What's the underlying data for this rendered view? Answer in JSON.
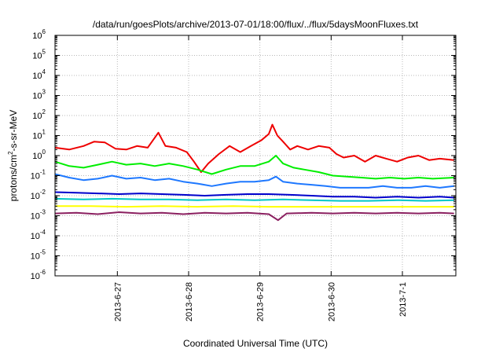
{
  "chart_data": {
    "type": "line",
    "title": "/data/run/goesPlots/archive/2013-07-01/18:00/flux/../flux/5daysMoonFluxes.txt",
    "xlabel": "Coordinated Universal Time (UTC)",
    "ylabel": {
      "prefix": "protons/cm",
      "superscript": "2",
      "suffix": "-s-sr-MeV"
    },
    "y_scale": "log",
    "ylim_exponents": [
      -6,
      6
    ],
    "y_ticks": [
      {
        "base": "10",
        "exp": "6"
      },
      {
        "base": "10",
        "exp": "5"
      },
      {
        "base": "10",
        "exp": "4"
      },
      {
        "base": "10",
        "exp": "3"
      },
      {
        "base": "10",
        "exp": "2"
      },
      {
        "base": "10",
        "exp": "1"
      },
      {
        "base": "10",
        "exp": "0"
      },
      {
        "base": "10",
        "exp": "-1"
      },
      {
        "base": "10",
        "exp": "-2"
      },
      {
        "base": "10",
        "exp": "-3"
      },
      {
        "base": "10",
        "exp": "-4"
      },
      {
        "base": "10",
        "exp": "-5"
      },
      {
        "base": "10",
        "exp": "-6"
      }
    ],
    "x_start": "2013-06-26 03:00",
    "x_end": "2013-07-01 18:00",
    "x_ticks": [
      "2013-6-27",
      "2013-6-28",
      "2013-6-29",
      "2013-6-30",
      "2013-7-1"
    ],
    "x_tick_dates": [
      "2013-06-27",
      "2013-06-28",
      "2013-06-29",
      "2013-06-30",
      "2013-07-01"
    ],
    "grid": true,
    "legend": "none",
    "series": [
      {
        "color": "#ee0000",
        "values": [
          [
            0.0,
            2.5
          ],
          [
            0.2,
            2.0
          ],
          [
            0.4,
            3.0
          ],
          [
            0.55,
            5.0
          ],
          [
            0.7,
            4.5
          ],
          [
            0.85,
            2.2
          ],
          [
            1.0,
            2.0
          ],
          [
            1.15,
            3.0
          ],
          [
            1.3,
            2.5
          ],
          [
            1.45,
            14.0
          ],
          [
            1.55,
            3.0
          ],
          [
            1.7,
            2.5
          ],
          [
            1.85,
            1.5
          ],
          [
            1.95,
            0.5
          ],
          [
            2.05,
            0.15
          ],
          [
            2.15,
            0.4
          ],
          [
            2.3,
            1.2
          ],
          [
            2.45,
            3.0
          ],
          [
            2.6,
            1.5
          ],
          [
            2.75,
            3.0
          ],
          [
            2.9,
            6.0
          ],
          [
            3.0,
            12.0
          ],
          [
            3.05,
            35.0
          ],
          [
            3.12,
            10.0
          ],
          [
            3.2,
            5.0
          ],
          [
            3.3,
            2.0
          ],
          [
            3.4,
            3.0
          ],
          [
            3.55,
            2.0
          ],
          [
            3.7,
            3.0
          ],
          [
            3.85,
            2.5
          ],
          [
            3.95,
            1.2
          ],
          [
            4.05,
            0.8
          ],
          [
            4.2,
            1.0
          ],
          [
            4.35,
            0.5
          ],
          [
            4.5,
            1.0
          ],
          [
            4.65,
            0.7
          ],
          [
            4.8,
            0.5
          ],
          [
            4.95,
            0.8
          ],
          [
            5.1,
            1.0
          ],
          [
            5.25,
            0.6
          ],
          [
            5.4,
            0.7
          ],
          [
            5.6,
            0.6
          ]
        ]
      },
      {
        "color": "#00ee00",
        "values": [
          [
            0.0,
            0.5
          ],
          [
            0.2,
            0.3
          ],
          [
            0.4,
            0.25
          ],
          [
            0.6,
            0.35
          ],
          [
            0.8,
            0.5
          ],
          [
            1.0,
            0.35
          ],
          [
            1.2,
            0.4
          ],
          [
            1.4,
            0.3
          ],
          [
            1.6,
            0.4
          ],
          [
            1.8,
            0.3
          ],
          [
            2.0,
            0.2
          ],
          [
            2.2,
            0.12
          ],
          [
            2.4,
            0.2
          ],
          [
            2.6,
            0.3
          ],
          [
            2.8,
            0.3
          ],
          [
            3.0,
            0.5
          ],
          [
            3.1,
            1.0
          ],
          [
            3.2,
            0.4
          ],
          [
            3.35,
            0.25
          ],
          [
            3.5,
            0.2
          ],
          [
            3.7,
            0.15
          ],
          [
            3.9,
            0.1
          ],
          [
            4.1,
            0.09
          ],
          [
            4.3,
            0.08
          ],
          [
            4.5,
            0.07
          ],
          [
            4.7,
            0.08
          ],
          [
            4.9,
            0.07
          ],
          [
            5.1,
            0.08
          ],
          [
            5.3,
            0.07
          ],
          [
            5.6,
            0.08
          ]
        ]
      },
      {
        "color": "#1e78ff",
        "values": [
          [
            0.0,
            0.12
          ],
          [
            0.2,
            0.08
          ],
          [
            0.4,
            0.06
          ],
          [
            0.6,
            0.07
          ],
          [
            0.8,
            0.1
          ],
          [
            1.0,
            0.07
          ],
          [
            1.2,
            0.08
          ],
          [
            1.4,
            0.06
          ],
          [
            1.6,
            0.07
          ],
          [
            1.8,
            0.05
          ],
          [
            2.0,
            0.04
          ],
          [
            2.2,
            0.03
          ],
          [
            2.4,
            0.04
          ],
          [
            2.6,
            0.05
          ],
          [
            2.8,
            0.05
          ],
          [
            3.0,
            0.06
          ],
          [
            3.1,
            0.09
          ],
          [
            3.2,
            0.05
          ],
          [
            3.4,
            0.04
          ],
          [
            3.6,
            0.035
          ],
          [
            3.8,
            0.03
          ],
          [
            4.0,
            0.025
          ],
          [
            4.2,
            0.025
          ],
          [
            4.4,
            0.025
          ],
          [
            4.6,
            0.03
          ],
          [
            4.8,
            0.025
          ],
          [
            5.0,
            0.025
          ],
          [
            5.2,
            0.03
          ],
          [
            5.4,
            0.025
          ],
          [
            5.6,
            0.03
          ]
        ]
      },
      {
        "color": "#0000cc",
        "values": [
          [
            0.0,
            0.015
          ],
          [
            0.3,
            0.014
          ],
          [
            0.6,
            0.013
          ],
          [
            0.9,
            0.012
          ],
          [
            1.2,
            0.013
          ],
          [
            1.5,
            0.012
          ],
          [
            1.8,
            0.011
          ],
          [
            2.1,
            0.01
          ],
          [
            2.4,
            0.011
          ],
          [
            2.7,
            0.012
          ],
          [
            3.0,
            0.012
          ],
          [
            3.3,
            0.011
          ],
          [
            3.6,
            0.01
          ],
          [
            3.9,
            0.009
          ],
          [
            4.2,
            0.009
          ],
          [
            4.5,
            0.008
          ],
          [
            4.8,
            0.009
          ],
          [
            5.1,
            0.008
          ],
          [
            5.4,
            0.009
          ],
          [
            5.6,
            0.008
          ]
        ]
      },
      {
        "color": "#00c8c8",
        "values": [
          [
            0.0,
            0.007
          ],
          [
            0.4,
            0.0065
          ],
          [
            0.8,
            0.007
          ],
          [
            1.2,
            0.0065
          ],
          [
            1.6,
            0.0065
          ],
          [
            2.0,
            0.006
          ],
          [
            2.4,
            0.0065
          ],
          [
            2.8,
            0.006
          ],
          [
            3.2,
            0.0065
          ],
          [
            3.6,
            0.006
          ],
          [
            4.0,
            0.0055
          ],
          [
            4.4,
            0.0055
          ],
          [
            4.8,
            0.006
          ],
          [
            5.2,
            0.0055
          ],
          [
            5.6,
            0.006
          ]
        ]
      },
      {
        "color": "#ffff00",
        "values": [
          [
            0.0,
            0.003
          ],
          [
            0.5,
            0.003
          ],
          [
            1.0,
            0.0028
          ],
          [
            1.5,
            0.003
          ],
          [
            2.0,
            0.0028
          ],
          [
            2.5,
            0.003
          ],
          [
            3.0,
            0.0028
          ],
          [
            3.5,
            0.0028
          ],
          [
            4.0,
            0.0028
          ],
          [
            4.5,
            0.0028
          ],
          [
            5.0,
            0.0028
          ],
          [
            5.6,
            0.0028
          ]
        ]
      },
      {
        "color": "#8b2060",
        "values": [
          [
            0.0,
            0.0013
          ],
          [
            0.3,
            0.0014
          ],
          [
            0.6,
            0.0012
          ],
          [
            0.9,
            0.0015
          ],
          [
            1.2,
            0.0013
          ],
          [
            1.5,
            0.0014
          ],
          [
            1.8,
            0.0012
          ],
          [
            2.1,
            0.0014
          ],
          [
            2.4,
            0.0013
          ],
          [
            2.7,
            0.0014
          ],
          [
            3.0,
            0.0012
          ],
          [
            3.13,
            0.0006
          ],
          [
            3.25,
            0.0013
          ],
          [
            3.6,
            0.0014
          ],
          [
            3.9,
            0.0013
          ],
          [
            4.2,
            0.0014
          ],
          [
            4.5,
            0.0013
          ],
          [
            4.8,
            0.0014
          ],
          [
            5.1,
            0.0013
          ],
          [
            5.4,
            0.0014
          ],
          [
            5.6,
            0.0013
          ]
        ]
      }
    ]
  }
}
